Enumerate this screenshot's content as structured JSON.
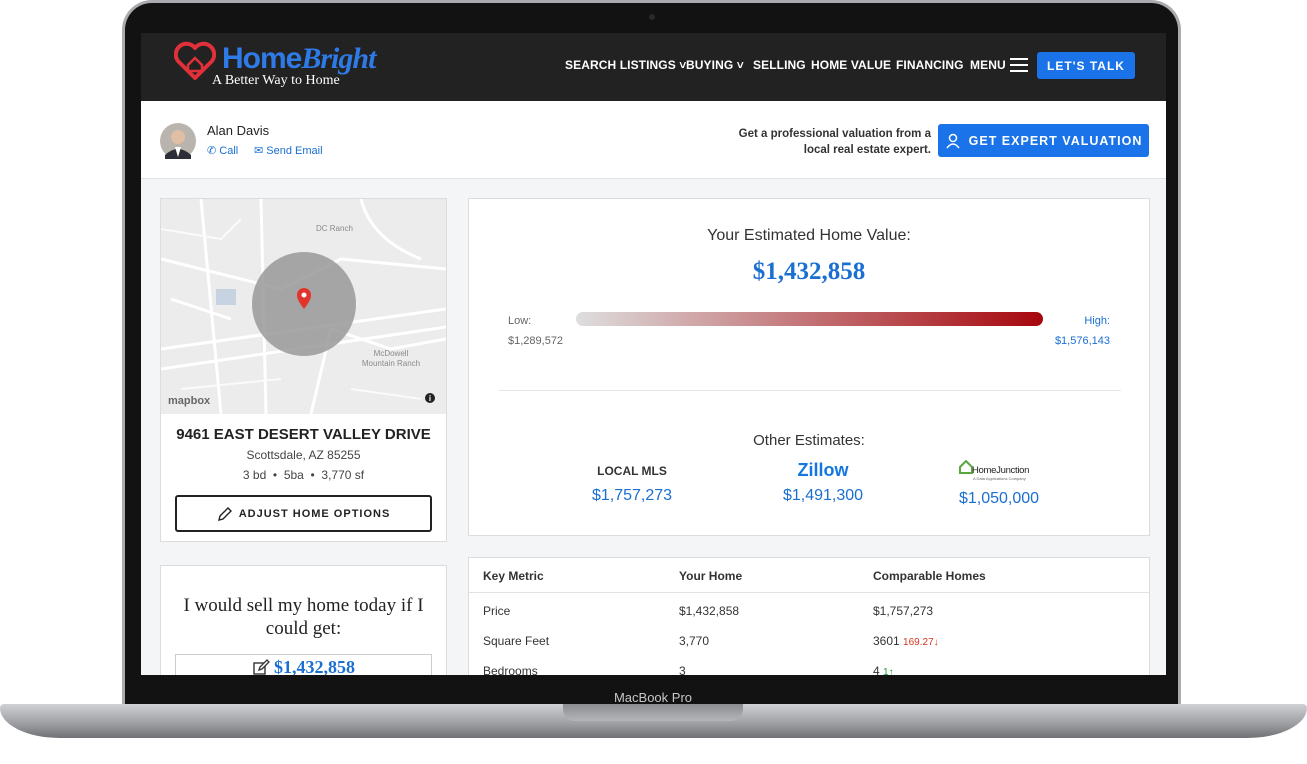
{
  "device": {
    "label": "MacBook Pro"
  },
  "header": {
    "brand_home": "Home",
    "brand_bright": "Bright",
    "tagline": "A Better Way to Home",
    "nav": [
      "SEARCH LISTINGS",
      "BUYING",
      "SELLING",
      "HOME VALUE",
      "FINANCING",
      "MENU"
    ],
    "cta": "LET'S TALK"
  },
  "agent": {
    "name": "Alan Davis",
    "call": "Call",
    "email": "Send Email",
    "pitch_line1": "Get a professional valuation from a",
    "pitch_line2": "local real estate expert.",
    "button": "GET EXPERT VALUATION"
  },
  "map": {
    "labels": [
      "DC Ranch",
      "McDowell",
      "Mountain Ranch"
    ],
    "attribution": "mapbox"
  },
  "property": {
    "address": "9461 EAST DESERT VALLEY DRIVE",
    "city": "Scottsdale, AZ 85255",
    "details": [
      "3 bd",
      "5ba",
      "3,770 sf"
    ],
    "button": "ADJUST HOME OPTIONS"
  },
  "offer": {
    "prompt_line1": "I would sell my home today if I",
    "prompt_line2": "could get:",
    "value": "$1,432,858"
  },
  "estimate": {
    "title": "Your Estimated Home Value:",
    "value": "$1,432,858",
    "low_label": "Low:",
    "low_value": "$1,289,572",
    "high_label": "High:",
    "high_value": "$1,576,143"
  },
  "others": {
    "title": "Other Estimates:",
    "sources": [
      {
        "name": "LOCAL MLS",
        "value": "$1,757,273"
      },
      {
        "name": "Zillow",
        "value": "$1,491,300"
      },
      {
        "name": "HomeJunction",
        "tagline": "A Data Applications Company",
        "value": "$1,050,000"
      }
    ]
  },
  "table": {
    "header": [
      "Key Metric",
      "Your Home",
      "Comparable Homes"
    ],
    "rows": [
      {
        "metric": "Price",
        "home": "$1,432,858",
        "comparable": "$1,757,273"
      },
      {
        "metric": "Square Feet",
        "home": "3,770",
        "comparable": "3601",
        "delta": "169.27"
      },
      {
        "metric": "Bedrooms",
        "home": "3",
        "comparable": "4",
        "delta": "1"
      }
    ]
  }
}
